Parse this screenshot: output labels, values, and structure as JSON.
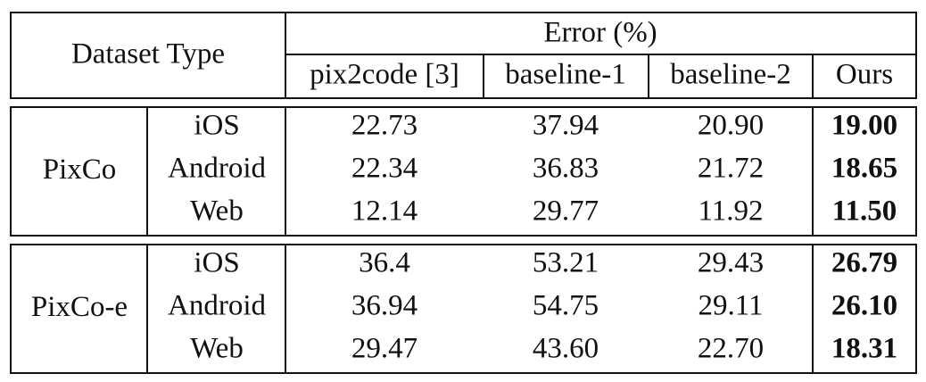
{
  "table": {
    "header": {
      "row_label": "Dataset Type",
      "group": "Error (%)",
      "columns": [
        "pix2code [3]",
        "baseline-1",
        "baseline-2",
        "Ours"
      ]
    },
    "groups": [
      {
        "name": "PixCo",
        "rows": [
          {
            "platform": "iOS",
            "values": [
              "22.73",
              "37.94",
              "20.90",
              "19.00"
            ]
          },
          {
            "platform": "Android",
            "values": [
              "22.34",
              "36.83",
              "21.72",
              "18.65"
            ]
          },
          {
            "platform": "Web",
            "values": [
              "12.14",
              "29.77",
              "11.92",
              "11.50"
            ]
          }
        ]
      },
      {
        "name": "PixCo-e",
        "rows": [
          {
            "platform": "iOS",
            "values": [
              "36.4",
              "53.21",
              "29.43",
              "26.79"
            ]
          },
          {
            "platform": "Android",
            "values": [
              "36.94",
              "54.75",
              "29.11",
              "26.10"
            ]
          },
          {
            "platform": "Web",
            "values": [
              "29.47",
              "43.60",
              "22.70",
              "18.31"
            ]
          }
        ]
      }
    ]
  }
}
